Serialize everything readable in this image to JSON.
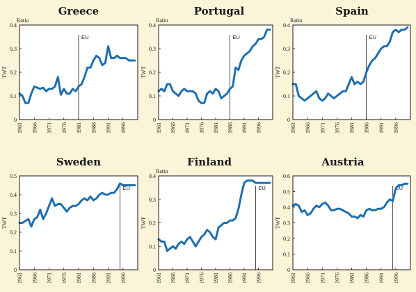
{
  "colors": {
    "background": "#fcf4d8",
    "plot_bg": "#ffffff",
    "line": "#1f6fb0",
    "axes": "#1a1a1a"
  },
  "chart_data": [
    {
      "type": "line",
      "title": "Greece",
      "ylabel": "TWT",
      "unit_label": "Ratio",
      "ylim": [
        0,
        0.4
      ],
      "yticks": [
        "0",
        "0.1",
        "0.2",
        "0.3",
        "0.4"
      ],
      "xlim": [
        1961,
        2001
      ],
      "xticks": [
        "1961",
        "1966",
        "1971",
        "1976",
        "1981",
        "1986",
        "1991",
        "1996"
      ],
      "grid": false,
      "event": {
        "x": 1981,
        "label": "EU"
      },
      "series": [
        {
          "x": [
            1961,
            1962,
            1963,
            1964,
            1965,
            1966,
            1967,
            1968,
            1969,
            1970,
            1971,
            1972,
            1973,
            1974,
            1975,
            1976,
            1977,
            1978,
            1979,
            1980,
            1981,
            1982,
            1983,
            1984,
            1985,
            1986,
            1987,
            1988,
            1989,
            1990,
            1991,
            1992,
            1993,
            1994,
            1995,
            1996,
            1997,
            1998,
            1999,
            2000
          ],
          "values": [
            0.11,
            0.1,
            0.07,
            0.07,
            0.11,
            0.14,
            0.135,
            0.13,
            0.135,
            0.12,
            0.13,
            0.13,
            0.14,
            0.18,
            0.105,
            0.13,
            0.11,
            0.11,
            0.13,
            0.12,
            0.14,
            0.15,
            0.18,
            0.22,
            0.22,
            0.25,
            0.27,
            0.26,
            0.23,
            0.24,
            0.31,
            0.26,
            0.26,
            0.27,
            0.26,
            0.26,
            0.26,
            0.25,
            0.25,
            0.25
          ]
        }
      ]
    },
    {
      "type": "line",
      "title": "Portugal",
      "ylabel": "TWT",
      "unit_label": "Ratio",
      "ylim": [
        0,
        0.4
      ],
      "yticks": [
        "0",
        "0.1",
        "0.2",
        "0.3",
        "0.4"
      ],
      "xlim": [
        1961,
        2001
      ],
      "xticks": [
        "1961",
        "1966",
        "1971",
        "1976",
        "1981",
        "1986",
        "1991",
        "1996"
      ],
      "grid": false,
      "event": {
        "x": 1986,
        "label": "EU"
      },
      "series": [
        {
          "x": [
            1961,
            1962,
            1963,
            1964,
            1965,
            1966,
            1967,
            1968,
            1969,
            1970,
            1971,
            1972,
            1973,
            1974,
            1975,
            1976,
            1977,
            1978,
            1979,
            1980,
            1981,
            1982,
            1983,
            1984,
            1985,
            1986,
            1987,
            1988,
            1989,
            1990,
            1991,
            1992,
            1993,
            1994,
            1995,
            1996,
            1997,
            1998,
            1999,
            2000
          ],
          "values": [
            0.12,
            0.13,
            0.12,
            0.15,
            0.15,
            0.12,
            0.11,
            0.1,
            0.12,
            0.13,
            0.12,
            0.12,
            0.12,
            0.11,
            0.08,
            0.07,
            0.07,
            0.11,
            0.12,
            0.11,
            0.13,
            0.12,
            0.09,
            0.1,
            0.11,
            0.13,
            0.14,
            0.22,
            0.21,
            0.25,
            0.27,
            0.28,
            0.29,
            0.31,
            0.32,
            0.34,
            0.34,
            0.35,
            0.38,
            0.38
          ]
        }
      ]
    },
    {
      "type": "line",
      "title": "Spain",
      "ylabel": "TWT",
      "unit_label": "Ratio",
      "ylim": [
        0,
        0.4
      ],
      "yticks": [
        "0",
        "0.1",
        "0.2",
        "0.3",
        "0.4"
      ],
      "xlim": [
        1961,
        2001
      ],
      "xticks": [
        "1961",
        "1966",
        "1971",
        "1976",
        "1981",
        "1986",
        "1991",
        "1996"
      ],
      "grid": false,
      "event": {
        "x": 1986,
        "label": "EU"
      },
      "series": [
        {
          "x": [
            1961,
            1962,
            1963,
            1964,
            1965,
            1966,
            1967,
            1968,
            1969,
            1970,
            1971,
            1972,
            1973,
            1974,
            1975,
            1976,
            1977,
            1978,
            1979,
            1980,
            1981,
            1982,
            1983,
            1984,
            1985,
            1986,
            1987,
            1988,
            1989,
            1990,
            1991,
            1992,
            1993,
            1994,
            1995,
            1996,
            1997,
            1998,
            1999,
            2000
          ],
          "values": [
            0.15,
            0.15,
            0.1,
            0.09,
            0.08,
            0.09,
            0.1,
            0.11,
            0.12,
            0.09,
            0.08,
            0.09,
            0.11,
            0.1,
            0.09,
            0.1,
            0.11,
            0.12,
            0.12,
            0.15,
            0.18,
            0.15,
            0.16,
            0.15,
            0.16,
            0.2,
            0.23,
            0.25,
            0.26,
            0.28,
            0.3,
            0.31,
            0.31,
            0.33,
            0.37,
            0.38,
            0.37,
            0.38,
            0.38,
            0.39
          ]
        }
      ]
    },
    {
      "type": "line",
      "title": "Sweden",
      "ylabel": "TWT",
      "unit_label": "",
      "ylim": [
        0,
        0.5
      ],
      "yticks": [
        "0",
        "0.1",
        "0.2",
        "0.3",
        "0.4",
        "0.5"
      ],
      "xlim": [
        1961,
        2001
      ],
      "xticks": [
        "1961",
        "1966",
        "1971",
        "1976",
        "1981",
        "1986",
        "1991",
        "1996"
      ],
      "grid": false,
      "event": {
        "x": 1995,
        "label": "EU"
      },
      "series": [
        {
          "x": [
            1961,
            1962,
            1963,
            1964,
            1965,
            1966,
            1967,
            1968,
            1969,
            1970,
            1971,
            1972,
            1973,
            1974,
            1975,
            1976,
            1977,
            1978,
            1979,
            1980,
            1981,
            1982,
            1983,
            1984,
            1985,
            1986,
            1987,
            1988,
            1989,
            1990,
            1991,
            1992,
            1993,
            1994,
            1995,
            1996,
            1997,
            1998,
            1999,
            2000
          ],
          "values": [
            0.25,
            0.25,
            0.26,
            0.27,
            0.23,
            0.27,
            0.28,
            0.32,
            0.27,
            0.3,
            0.34,
            0.38,
            0.34,
            0.35,
            0.35,
            0.33,
            0.31,
            0.33,
            0.34,
            0.34,
            0.35,
            0.37,
            0.38,
            0.37,
            0.39,
            0.37,
            0.38,
            0.4,
            0.41,
            0.4,
            0.4,
            0.41,
            0.41,
            0.43,
            0.46,
            0.45,
            0.45,
            0.45,
            0.45,
            0.45
          ]
        }
      ]
    },
    {
      "type": "line",
      "title": "Finland",
      "ylabel": "TWT",
      "unit_label": "Ratio",
      "ylim": [
        0,
        0.4
      ],
      "yticks": [
        "0",
        "0.1",
        "0.2",
        "0.3",
        "0.4"
      ],
      "xlim": [
        1961,
        2001
      ],
      "xticks": [
        "1961",
        "1966",
        "1971",
        "1976",
        "1981",
        "1986",
        "1991",
        "1996"
      ],
      "grid": false,
      "event": {
        "x": 1995,
        "label": "EU"
      },
      "series": [
        {
          "x": [
            1961,
            1962,
            1963,
            1964,
            1965,
            1966,
            1967,
            1968,
            1969,
            1970,
            1971,
            1972,
            1973,
            1974,
            1975,
            1976,
            1977,
            1978,
            1979,
            1980,
            1981,
            1982,
            1983,
            1984,
            1985,
            1986,
            1987,
            1988,
            1989,
            1990,
            1991,
            1992,
            1993,
            1994,
            1995,
            1996,
            1997,
            1998,
            1999,
            2000
          ],
          "values": [
            0.13,
            0.12,
            0.12,
            0.08,
            0.09,
            0.1,
            0.09,
            0.11,
            0.12,
            0.11,
            0.13,
            0.14,
            0.12,
            0.1,
            0.12,
            0.14,
            0.15,
            0.17,
            0.16,
            0.14,
            0.13,
            0.18,
            0.19,
            0.2,
            0.2,
            0.21,
            0.21,
            0.22,
            0.26,
            0.32,
            0.37,
            0.38,
            0.38,
            0.38,
            0.37,
            0.37,
            0.37,
            0.37,
            0.37,
            0.37
          ]
        }
      ]
    },
    {
      "type": "line",
      "title": "Austria",
      "ylabel": "TWT",
      "unit_label": "",
      "ylim": [
        0,
        0.6
      ],
      "yticks": [
        "0",
        "0.1",
        "0.2",
        "0.3",
        "0.4",
        "0.5",
        "0.6"
      ],
      "xlim": [
        1961,
        2001
      ],
      "xticks": [
        "1961",
        "1966",
        "1971",
        "1976",
        "1981",
        "1986",
        "1991",
        "1996"
      ],
      "grid": false,
      "event": {
        "x": 1995,
        "label": "EU"
      },
      "series": [
        {
          "x": [
            1961,
            1962,
            1963,
            1964,
            1965,
            1966,
            1967,
            1968,
            1969,
            1970,
            1971,
            1972,
            1973,
            1974,
            1975,
            1976,
            1977,
            1978,
            1979,
            1980,
            1981,
            1982,
            1983,
            1984,
            1985,
            1986,
            1987,
            1988,
            1989,
            1990,
            1991,
            1992,
            1993,
            1994,
            1995,
            1996,
            1997,
            1998,
            1999,
            2000
          ],
          "values": [
            0.41,
            0.42,
            0.41,
            0.37,
            0.38,
            0.35,
            0.36,
            0.39,
            0.41,
            0.4,
            0.42,
            0.43,
            0.41,
            0.38,
            0.38,
            0.39,
            0.39,
            0.38,
            0.37,
            0.36,
            0.34,
            0.34,
            0.33,
            0.35,
            0.34,
            0.38,
            0.39,
            0.38,
            0.38,
            0.39,
            0.39,
            0.4,
            0.43,
            0.45,
            0.44,
            0.52,
            0.54,
            0.54,
            0.55,
            0.55
          ]
        }
      ]
    }
  ]
}
